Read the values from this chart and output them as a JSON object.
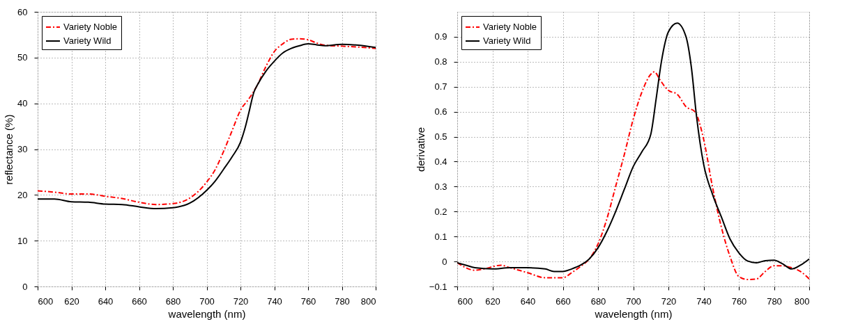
{
  "chart_data": [
    {
      "type": "line",
      "xlabel": "wavelength (nm)",
      "ylabel": "reflectance (%)",
      "xlim": [
        600,
        800
      ],
      "ylim": [
        0,
        60
      ],
      "xticks": [
        600,
        620,
        640,
        660,
        680,
        700,
        720,
        740,
        760,
        780,
        800
      ],
      "yticks": [
        0,
        10,
        20,
        30,
        40,
        50,
        60
      ],
      "grid": true,
      "legend": "top left",
      "series": [
        {
          "name": "Variety Noble",
          "color": "#ff0000",
          "line_style": "dashed",
          "x": [
            600,
            610,
            620,
            630,
            640,
            650,
            660,
            670,
            680,
            690,
            700,
            705,
            710,
            715,
            720,
            725,
            730,
            735,
            740,
            745,
            750,
            755,
            760,
            765,
            770,
            780,
            790,
            800
          ],
          "values": [
            20.9,
            20.6,
            20.2,
            20.2,
            19.7,
            19.2,
            18.4,
            17.9,
            18.1,
            19.3,
            22.8,
            25.5,
            29.5,
            34,
            38.5,
            41,
            44,
            48,
            51.3,
            53,
            54,
            54.1,
            53.9,
            53.2,
            52.7,
            52.5,
            52.3,
            52
          ]
        },
        {
          "name": "Variety Wild",
          "color": "#000000",
          "line_style": "solid",
          "x": [
            600,
            610,
            620,
            630,
            640,
            650,
            660,
            670,
            680,
            690,
            700,
            705,
            710,
            715,
            720,
            723,
            725,
            728,
            730,
            735,
            740,
            745,
            750,
            755,
            760,
            765,
            770,
            780,
            790,
            800
          ],
          "values": [
            19.1,
            19.1,
            18.5,
            18.4,
            18,
            17.9,
            17.4,
            17,
            17.2,
            18.2,
            21,
            23,
            25.6,
            28.3,
            31.5,
            35,
            38,
            42.5,
            44,
            47,
            49.2,
            51,
            52,
            52.6,
            53,
            52.8,
            52.6,
            52.9,
            52.7,
            52.2
          ]
        }
      ]
    },
    {
      "type": "line",
      "xlabel": "wavelength (nm)",
      "ylabel": "derivative",
      "xlim": [
        600,
        800
      ],
      "ylim": [
        -0.1,
        1
      ],
      "xticks": [
        600,
        620,
        640,
        660,
        680,
        700,
        720,
        740,
        760,
        780,
        800
      ],
      "yticks": [
        -0.1,
        0,
        0.1,
        0.2,
        0.3,
        0.4,
        0.5,
        0.6,
        0.7,
        0.8,
        0.9
      ],
      "grid": true,
      "legend": "top left",
      "series": [
        {
          "name": "Variety Noble",
          "color": "#ff0000",
          "line_style": "dashed",
          "x": [
            600,
            610,
            615,
            625,
            630,
            640,
            650,
            660,
            665,
            670,
            675,
            680,
            685,
            690,
            695,
            700,
            705,
            710,
            712,
            715,
            718,
            720,
            725,
            730,
            735,
            740,
            745,
            750,
            755,
            760,
            765,
            770,
            775,
            780,
            785,
            790,
            795,
            800
          ],
          "values": [
            -0.005,
            -0.035,
            -0.03,
            -0.015,
            -0.025,
            -0.045,
            -0.065,
            -0.065,
            -0.045,
            -0.02,
            0.01,
            0.07,
            0.17,
            0.3,
            0.43,
            0.57,
            0.68,
            0.75,
            0.76,
            0.73,
            0.7,
            0.685,
            0.67,
            0.62,
            0.6,
            0.49,
            0.3,
            0.14,
            0.02,
            -0.06,
            -0.072,
            -0.07,
            -0.04,
            -0.017,
            -0.017,
            -0.025,
            -0.04,
            -0.07
          ]
        },
        {
          "name": "Variety Wild",
          "color": "#000000",
          "line_style": "solid",
          "x": [
            600,
            605,
            610,
            620,
            630,
            640,
            650,
            655,
            660,
            665,
            670,
            675,
            680,
            685,
            690,
            695,
            700,
            705,
            710,
            713,
            716,
            720,
            725,
            730,
            733,
            736,
            740,
            745,
            750,
            755,
            760,
            765,
            770,
            775,
            780,
            785,
            790,
            795,
            800
          ],
          "values": [
            -0.005,
            -0.015,
            -0.025,
            -0.03,
            -0.025,
            -0.025,
            -0.03,
            -0.04,
            -0.04,
            -0.03,
            -0.015,
            0.01,
            0.055,
            0.12,
            0.2,
            0.29,
            0.38,
            0.44,
            0.51,
            0.65,
            0.8,
            0.92,
            0.955,
            0.9,
            0.78,
            0.58,
            0.39,
            0.27,
            0.18,
            0.09,
            0.035,
            0.002,
            -0.005,
            0.003,
            0.005,
            -0.01,
            -0.03,
            -0.015,
            0.01
          ]
        }
      ]
    }
  ]
}
